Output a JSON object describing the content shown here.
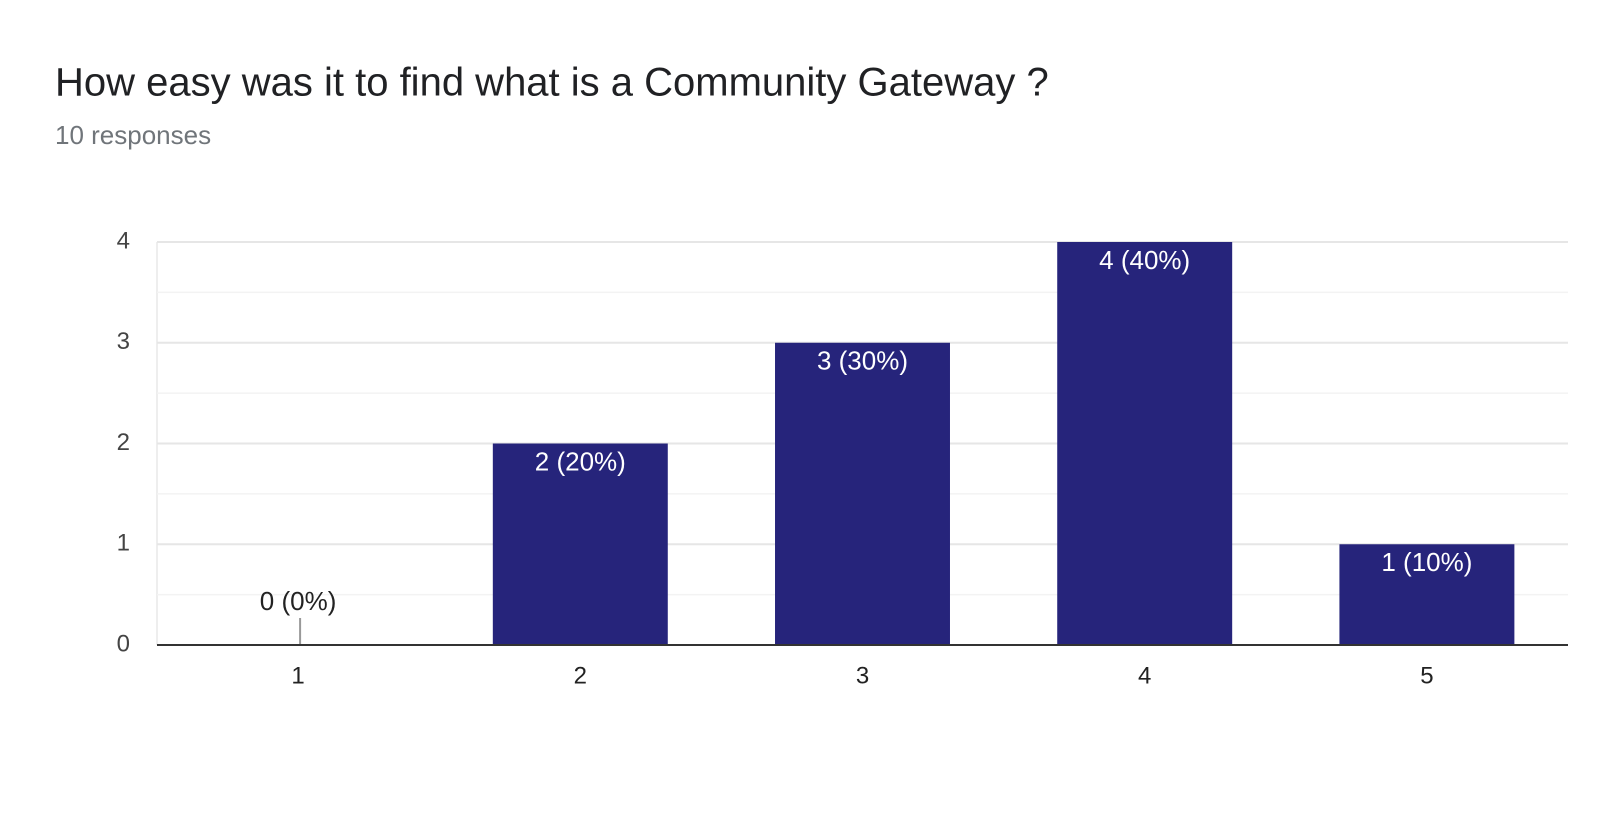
{
  "chart_data": {
    "type": "bar",
    "title": "How easy was it to find what is a Community Gateway ?",
    "subtitle": "10 responses",
    "categories": [
      "1",
      "2",
      "3",
      "4",
      "5"
    ],
    "values": [
      0,
      2,
      3,
      4,
      1
    ],
    "value_labels": [
      "0 (0%)",
      "2 (20%)",
      "3 (30%)",
      "4 (40%)",
      "1 (10%)"
    ],
    "color": "#26247b",
    "ylim": [
      0,
      4
    ],
    "yticks": [
      0,
      1,
      2,
      3,
      4
    ],
    "minor_yticks": [
      0.5,
      1.5,
      2.5,
      3.5
    ],
    "grid": true
  }
}
